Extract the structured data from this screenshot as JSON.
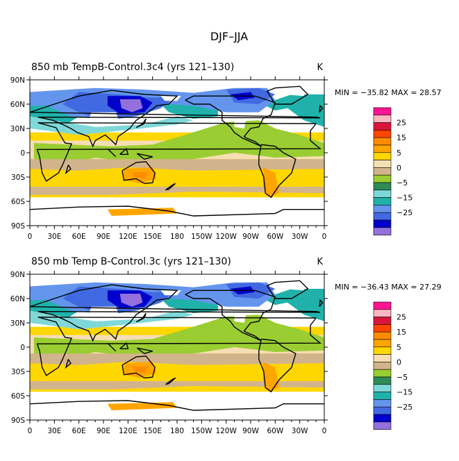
{
  "figure_title": "DJF–JJA",
  "units": "K",
  "chart_data": [
    {
      "type": "heatmap",
      "title": "850 mb TempB-Control.3c4 (yrs 121–130)",
      "units": "K",
      "min_max_text": "MIN = −35.82 MAX =  28.57",
      "min": -35.82,
      "max": 28.57,
      "xlabel": "",
      "ylabel": "",
      "xlim": [
        0,
        360
      ],
      "ylim": [
        -90,
        90
      ],
      "x_ticks": [
        0,
        30,
        60,
        90,
        120,
        150,
        180,
        210,
        240,
        270,
        300,
        330,
        360
      ],
      "y_ticks": [
        90,
        60,
        30,
        0,
        -30,
        -60,
        -90
      ],
      "colorbar_labels": [
        "25",
        "15",
        "5",
        "0",
        "−5",
        "−15",
        "−25"
      ]
    },
    {
      "type": "heatmap",
      "title": "850 mb Temp B-Control.3c (yrs 121–130)",
      "units": "K",
      "min_max_text": "MIN = −36.43 MAX =  27.29",
      "min": -36.43,
      "max": 27.29,
      "xlabel": "",
      "ylabel": "",
      "xlim": [
        0,
        360
      ],
      "ylim": [
        -90,
        90
      ],
      "x_ticks": [
        0,
        30,
        60,
        90,
        120,
        150,
        180,
        210,
        240,
        270,
        300,
        330,
        360
      ],
      "y_ticks": [
        90,
        60,
        30,
        0,
        -30,
        -60,
        -90
      ],
      "colorbar_labels": [
        "25",
        "15",
        "5",
        "0",
        "−5",
        "−15",
        "−25"
      ]
    }
  ],
  "x_tick_labels": [
    "0",
    "30E",
    "60E",
    "90E",
    "120E",
    "150E",
    "180",
    "150W",
    "120W",
    "90W",
    "60W",
    "30W",
    "0"
  ],
  "y_tick_labels": [
    "90N",
    "60N",
    "30N",
    "0",
    "30S",
    "60S",
    "90S"
  ],
  "colorbar_colors": [
    "#ff1493",
    "#ffb6c1",
    "#dc143c",
    "#ff4500",
    "#ff8c00",
    "#ffa500",
    "#ffd700",
    "#f5deb3",
    "#d2b48c",
    "#9acd32",
    "#2e8b57",
    "#7fd8d8",
    "#20b2aa",
    "#6495ed",
    "#4169e1",
    "#0000cd",
    "#9370db"
  ],
  "field_colors": {
    "white": "#ffffff",
    "purple": "#9370db",
    "navy": "#0000cd",
    "blue": "#4169e1",
    "cornflower": "#6495ed",
    "teal": "#20b2aa",
    "cyan": "#7fd8d8",
    "green": "#9acd32",
    "lightgreen": "#90ee90",
    "wheat": "#f5deb3",
    "tan": "#d2b48c",
    "gold": "#ffd700",
    "orange": "#ffa500",
    "darkorange": "#ff8c00",
    "red": "#ff4500"
  }
}
